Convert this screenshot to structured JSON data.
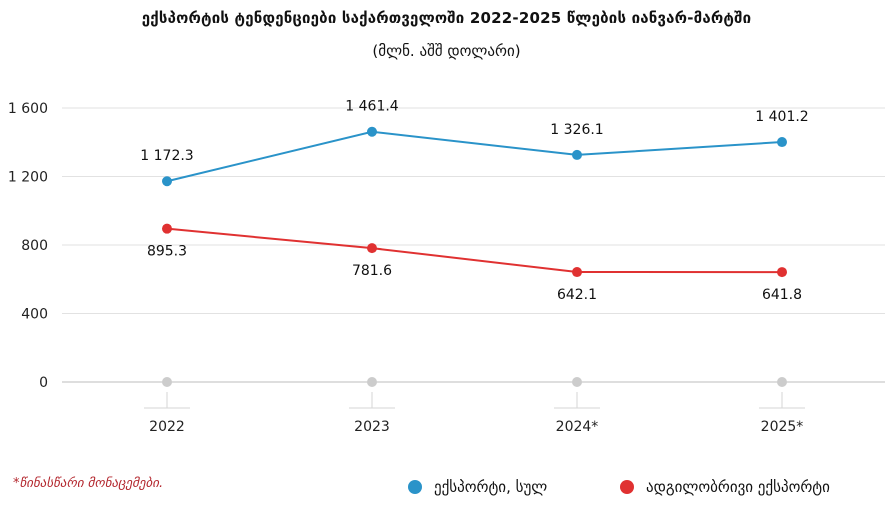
{
  "chart_data": {
    "type": "line",
    "title": "ექსპორტის ტენდენციები საქართველოში 2022-2025 წლების იანვარ-მარტში",
    "subtitle": "(მლნ. აშშ დოლარი)",
    "categories": [
      "2022",
      "2023",
      "2024*",
      "2025*"
    ],
    "ylim": [
      0,
      1600
    ],
    "yticks": [
      0,
      400,
      800,
      1200,
      1600
    ],
    "ytick_labels": [
      "0",
      "400",
      "800",
      "1 200",
      "1 600"
    ],
    "grid": true,
    "legend_position": "bottom-right",
    "series": [
      {
        "name": "ექსპორტი, სულ",
        "values": [
          1172.3,
          1461.4,
          1326.1,
          1401.2
        ],
        "labels": [
          "1 172.3",
          "1 461.4",
          "1 326.1",
          "1 401.2"
        ],
        "color": "#2a93c9",
        "label_position": "above"
      },
      {
        "name": "ადგილობრივი ექსპორტი",
        "values": [
          895.3,
          781.6,
          642.1,
          641.8
        ],
        "labels": [
          "895.3",
          "781.6",
          "642.1",
          "641.8"
        ],
        "color": "#e03131",
        "label_position": "below"
      }
    ],
    "baseline_marker_color": "#cccccc",
    "footnote": "*წინასწარი მონაცემები."
  }
}
